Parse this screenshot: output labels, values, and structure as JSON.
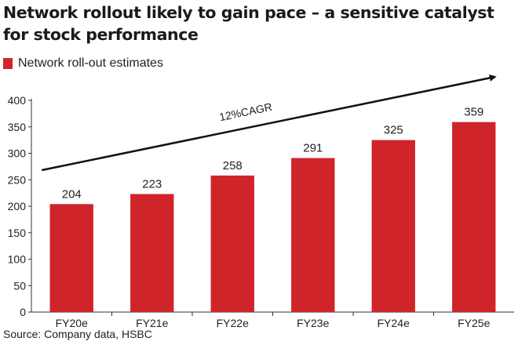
{
  "header": {
    "title_line1": "Network rollout likely to gain pace – a sensitive catalyst",
    "title_line2": "for stock performance"
  },
  "footer": {
    "source": "Source: Company data, HSBC"
  },
  "colors": {
    "bar": "#d0242b",
    "axis": "#333333",
    "text": "#222222",
    "arrow": "#111111"
  },
  "chart_data": {
    "type": "bar",
    "title": "Network rollout likely to gain pace – a sensitive catalyst for stock performance",
    "legend": [
      "Network roll-out estimates"
    ],
    "legend_position": "top-left",
    "categories": [
      "FY20e",
      "FY21e",
      "FY22e",
      "FY23e",
      "FY24e",
      "FY25e"
    ],
    "series": [
      {
        "name": "Network roll-out estimates",
        "values": [
          204,
          223,
          258,
          291,
          325,
          359
        ]
      }
    ],
    "data_labels": [
      "204",
      "223",
      "258",
      "291",
      "325",
      "359"
    ],
    "yticks": [
      0,
      50,
      100,
      150,
      200,
      250,
      300,
      350,
      400
    ],
    "ytick_labels": [
      "0",
      "50",
      "100",
      "150",
      "200",
      "250",
      "300",
      "350",
      "400"
    ],
    "ylim": [
      0,
      400
    ],
    "xlabel": "",
    "ylabel": "",
    "grid": false,
    "annotation": {
      "text": "12%CAGR",
      "type": "trend-arrow"
    }
  }
}
